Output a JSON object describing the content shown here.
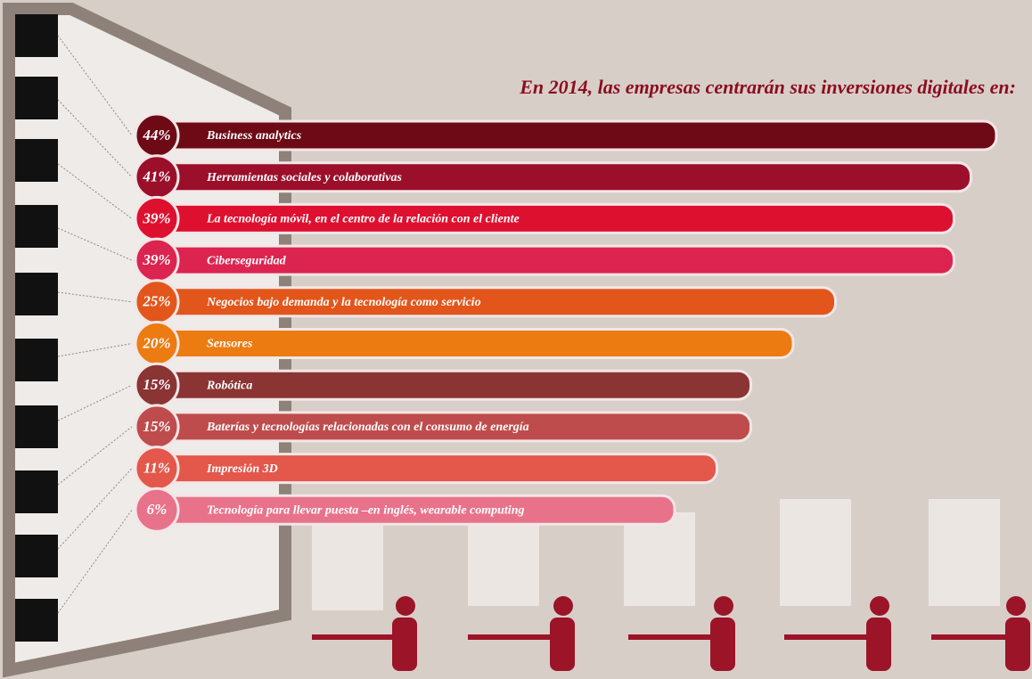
{
  "chart_data": {
    "type": "bar",
    "orientation": "horizontal",
    "title": "En 2014, las empresas centrarán sus inversiones digitales en:",
    "categories": [
      "Business analytics",
      "Herramientas sociales y colaborativas",
      "La tecnología móvil, en el centro de la relación con el cliente",
      "Ciberseguridad",
      "Negocios bajo demanda y la tecnología como servicio",
      "Sensores",
      "Robótica",
      "Baterías y tecnologías relacionadas con el consumo de energía",
      "Impresión 3D",
      "Tecnología para llevar puesta –en inglés,  wearable computing"
    ],
    "values": [
      44,
      41,
      39,
      39,
      25,
      20,
      15,
      15,
      11,
      6
    ],
    "value_labels": [
      "44%",
      "41%",
      "39%",
      "39%",
      "25%",
      "20%",
      "15%",
      "15%",
      "11%",
      "6%"
    ],
    "colors": [
      "#6d0a16",
      "#9b0f2a",
      "#de1030",
      "#dc2450",
      "#e2561c",
      "#ec7b12",
      "#8a3434",
      "#bf4c4c",
      "#e4574b",
      "#e8728a"
    ]
  }
}
